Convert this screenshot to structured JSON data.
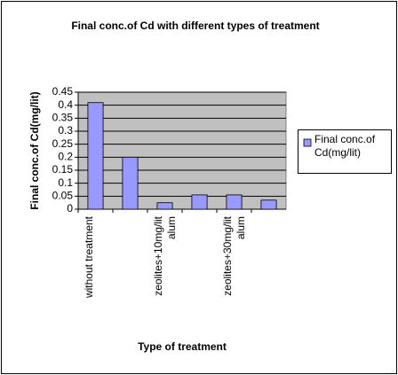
{
  "chart_data": {
    "type": "bar",
    "title": "Final conc.of Cd with different types of treatment",
    "x_label": "Type of treatment",
    "y_label": "Final conc.of Cd(mg/lit)",
    "categories": [
      "without treatment",
      null,
      "zeolites+10mg/lit alum",
      null,
      "zeolites+30mg/lit alum",
      null
    ],
    "series": [
      {
        "name": "Final conc.of Cd(mg/lit)",
        "color": "#9999ff",
        "values": [
          0.41,
          0.2,
          0.025,
          0.055,
          0.055,
          0.035
        ]
      }
    ],
    "ylim": [
      0,
      0.45
    ],
    "yticks": [
      0,
      0.05,
      0.1,
      0.15,
      0.2,
      0.25,
      0.3,
      0.35,
      0.4,
      0.45
    ],
    "grid": true,
    "legend": "right"
  }
}
